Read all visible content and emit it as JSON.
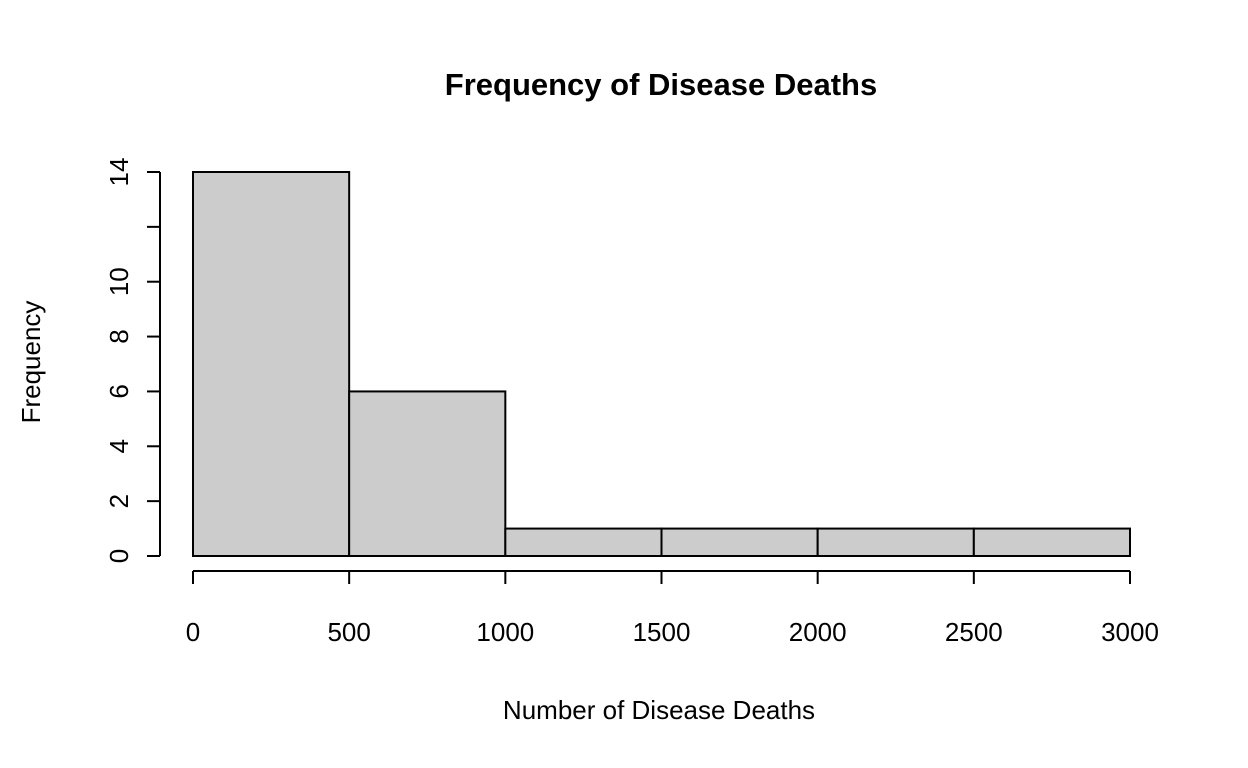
{
  "chart_data": {
    "type": "bar",
    "subtype": "histogram",
    "title": "Frequency of Disease Deaths",
    "xlabel": "Number of Disease Deaths",
    "ylabel": "Frequency",
    "bin_edges": [
      0,
      500,
      1000,
      1500,
      2000,
      2500,
      3000
    ],
    "counts": [
      14,
      6,
      1,
      1,
      1,
      1
    ],
    "x_ticks": [
      0,
      500,
      1000,
      1500,
      2000,
      2500,
      3000
    ],
    "x_tick_labels": [
      "0",
      "500",
      "1000",
      "1500",
      "2000",
      "2500",
      "3000"
    ],
    "y_ticks": [
      0,
      2,
      4,
      6,
      8,
      10,
      12,
      14
    ],
    "y_tick_labels": [
      "0",
      "2",
      "4",
      "6",
      "8",
      "10",
      "",
      "14"
    ],
    "xlim": [
      0,
      3000
    ],
    "ylim": [
      0,
      14
    ],
    "grid": false,
    "legend_position": "none",
    "colors": {
      "bar_fill": "#CCCCCC",
      "bar_stroke": "#000000",
      "axis": "#000000",
      "text": "#000000",
      "background": "#FFFFFF"
    }
  }
}
